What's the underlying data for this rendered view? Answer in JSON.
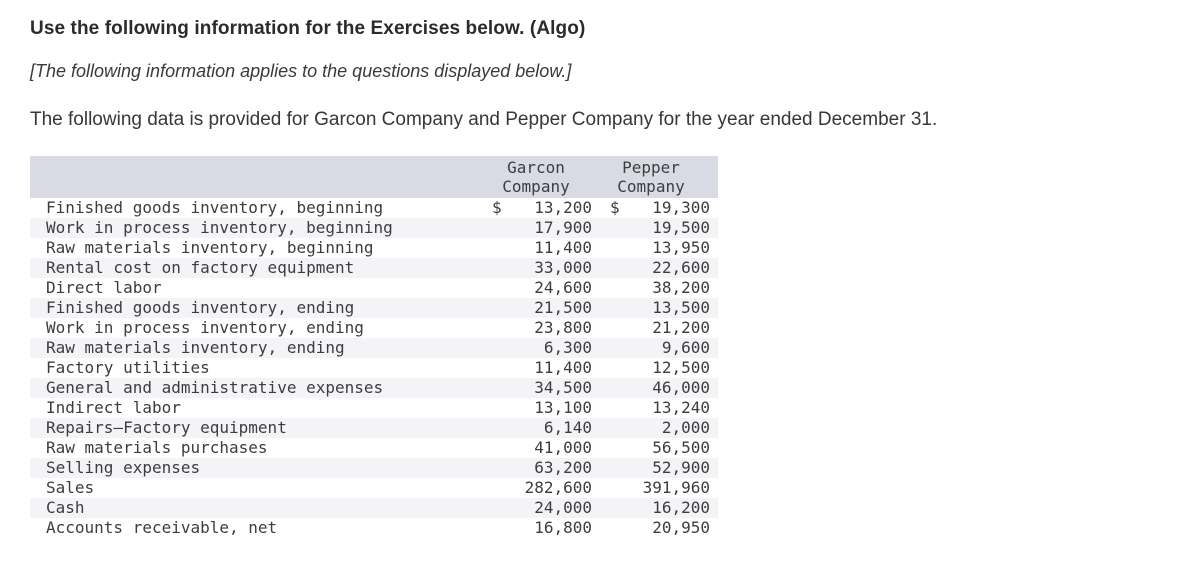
{
  "header": {
    "title": "Use the following information for the Exercises below. (Algo)",
    "note": "[The following information applies to the questions displayed below.]",
    "intro": "The following data is provided for Garcon Company and Pepper Company for the year ended December 31."
  },
  "table": {
    "currency_symbol": "$",
    "garcon_header": {
      "line1": "Garcon",
      "line2": "Company"
    },
    "pepper_header": {
      "line1": "Pepper",
      "line2": "Company"
    },
    "colors": {
      "header_bg": "#d8dbe4",
      "stripe_bg": "#f4f4f6",
      "text": "#3d3d3f"
    },
    "rows": [
      {
        "label": "Finished goods inventory, beginning",
        "garcon": "13,200",
        "pepper": "19,300",
        "dollar": true
      },
      {
        "label": "Work in process inventory, beginning",
        "garcon": "17,900",
        "pepper": "19,500",
        "dollar": false
      },
      {
        "label": "Raw materials inventory, beginning",
        "garcon": "11,400",
        "pepper": "13,950",
        "dollar": false
      },
      {
        "label": "Rental cost on factory equipment",
        "garcon": "33,000",
        "pepper": "22,600",
        "dollar": false
      },
      {
        "label": "Direct labor",
        "garcon": "24,600",
        "pepper": "38,200",
        "dollar": false
      },
      {
        "label": "Finished goods inventory, ending",
        "garcon": "21,500",
        "pepper": "13,500",
        "dollar": false
      },
      {
        "label": "Work in process inventory, ending",
        "garcon": "23,800",
        "pepper": "21,200",
        "dollar": false
      },
      {
        "label": "Raw materials inventory, ending",
        "garcon": "6,300",
        "pepper": "9,600",
        "dollar": false
      },
      {
        "label": "Factory utilities",
        "garcon": "11,400",
        "pepper": "12,500",
        "dollar": false
      },
      {
        "label": "General and administrative expenses",
        "garcon": "34,500",
        "pepper": "46,000",
        "dollar": false
      },
      {
        "label": "Indirect labor",
        "garcon": "13,100",
        "pepper": "13,240",
        "dollar": false
      },
      {
        "label": "Repairs—Factory equipment",
        "garcon": "6,140",
        "pepper": "2,000",
        "dollar": false
      },
      {
        "label": "Raw materials purchases",
        "garcon": "41,000",
        "pepper": "56,500",
        "dollar": false
      },
      {
        "label": "Selling expenses",
        "garcon": "63,200",
        "pepper": "52,900",
        "dollar": false
      },
      {
        "label": "Sales",
        "garcon": "282,600",
        "pepper": "391,960",
        "dollar": false
      },
      {
        "label": "Cash",
        "garcon": "24,000",
        "pepper": "16,200",
        "dollar": false
      },
      {
        "label": "Accounts receivable, net",
        "garcon": "16,800",
        "pepper": "20,950",
        "dollar": false
      }
    ]
  }
}
